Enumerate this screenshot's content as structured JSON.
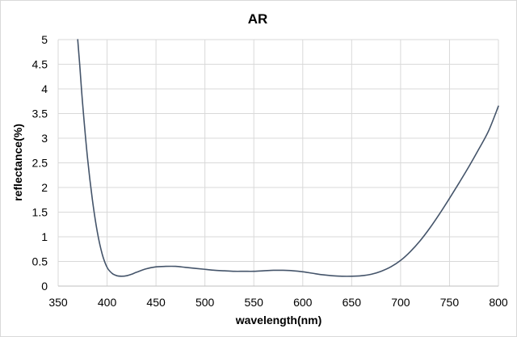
{
  "chart_data": {
    "type": "line",
    "title": "AR",
    "xlabel": "wavelength(nm)",
    "ylabel": "reflectance(%)",
    "xlim": [
      350,
      800
    ],
    "ylim": [
      0,
      5
    ],
    "x_ticks": [
      "350",
      "400",
      "450",
      "500",
      "550",
      "600",
      "650",
      "700",
      "750",
      "800"
    ],
    "y_ticks": [
      "0",
      "0.5",
      "1",
      "1.5",
      "2",
      "2.5",
      "3",
      "3.5",
      "4",
      "4.5",
      "5"
    ],
    "grid": true,
    "legend": false,
    "line_color": "#44546a",
    "series": [
      {
        "x": [
          370,
          372,
          375,
          380,
          385,
          390,
          395,
          400,
          405,
          410,
          415,
          420,
          425,
          430,
          440,
          450,
          460,
          470,
          480,
          490,
          500,
          510,
          520,
          530,
          540,
          550,
          560,
          570,
          575,
          580,
          590,
          600,
          610,
          620,
          630,
          640,
          650,
          660,
          670,
          680,
          690,
          700,
          710,
          720,
          730,
          740,
          750,
          760,
          770,
          780,
          790,
          800
        ],
        "y": [
          5.0,
          4.5,
          3.7,
          2.6,
          1.75,
          1.1,
          0.65,
          0.38,
          0.26,
          0.21,
          0.2,
          0.21,
          0.24,
          0.28,
          0.35,
          0.39,
          0.4,
          0.4,
          0.38,
          0.36,
          0.34,
          0.32,
          0.31,
          0.3,
          0.3,
          0.3,
          0.31,
          0.32,
          0.32,
          0.32,
          0.31,
          0.29,
          0.26,
          0.23,
          0.21,
          0.2,
          0.2,
          0.21,
          0.24,
          0.3,
          0.39,
          0.52,
          0.7,
          0.92,
          1.18,
          1.47,
          1.78,
          2.1,
          2.43,
          2.78,
          3.15,
          3.65
        ]
      }
    ]
  }
}
